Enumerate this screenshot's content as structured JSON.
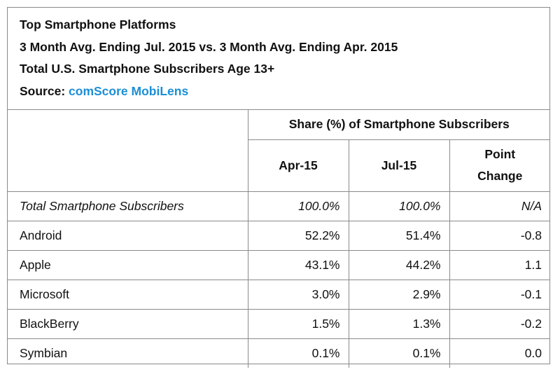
{
  "header": {
    "title": "Top Smartphone Platforms",
    "period": "3 Month Avg. Ending Jul. 2015 vs. 3 Month Avg. Ending Apr. 2015",
    "universe": "Total U.S. Smartphone Subscribers Age 13+",
    "source_label": "Source:",
    "source_value": "comScore MobiLens"
  },
  "chart_data": {
    "type": "table",
    "group_header": "Share (%) of Smartphone Subscribers",
    "columns": [
      "Apr-15",
      "Jul-15",
      "Point Change"
    ],
    "column_change_lines": [
      "Point",
      "Change"
    ],
    "rows": [
      {
        "label": "Total Smartphone Subscribers",
        "apr15": "100.0%",
        "jul15": "100.0%",
        "change": "N/A"
      },
      {
        "label": "Android",
        "apr15": "52.2%",
        "jul15": "51.4%",
        "change": "-0.8"
      },
      {
        "label": "Apple",
        "apr15": "43.1%",
        "jul15": "44.2%",
        "change": "1.1"
      },
      {
        "label": "Microsoft",
        "apr15": "3.0%",
        "jul15": "2.9%",
        "change": "-0.1"
      },
      {
        "label": "BlackBerry",
        "apr15": "1.5%",
        "jul15": "1.3%",
        "change": "-0.2"
      },
      {
        "label": "Symbian",
        "apr15": "0.1%",
        "jul15": "0.1%",
        "change": "0.0"
      }
    ]
  }
}
